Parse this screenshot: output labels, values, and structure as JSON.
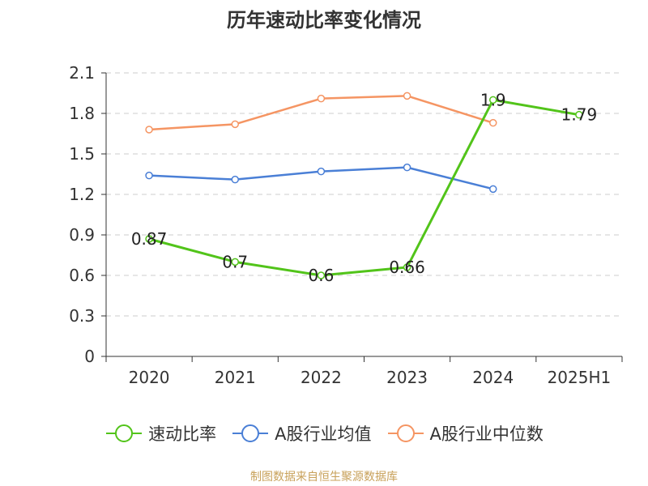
{
  "chart_data": {
    "type": "line",
    "title": "历年速动比率变化情况",
    "categories": [
      "2020",
      "2021",
      "2022",
      "2023",
      "2024",
      "2025H1"
    ],
    "ylim": [
      0,
      2.1
    ],
    "yticks": [
      "0",
      "0.3",
      "0.6",
      "0.9",
      "1.2",
      "1.5",
      "1.8",
      "2.1"
    ],
    "grid": true,
    "legend_position": "bottom",
    "series": [
      {
        "name": "速动比率",
        "color": "#52c41a",
        "values": [
          0.87,
          0.7,
          0.6,
          0.66,
          1.9,
          1.79
        ],
        "labels": [
          "0.87",
          "0.7",
          "0.6",
          "0.66",
          "1.9",
          "1.79"
        ]
      },
      {
        "name": "A股行业均值",
        "color": "#4a7fd6",
        "values": [
          1.34,
          1.31,
          1.37,
          1.4,
          1.24,
          null
        ]
      },
      {
        "name": "A股行业中位数",
        "color": "#f59563",
        "values": [
          1.68,
          1.72,
          1.91,
          1.93,
          1.73,
          null
        ]
      }
    ]
  },
  "source": "制图数据来自恒生聚源数据库"
}
